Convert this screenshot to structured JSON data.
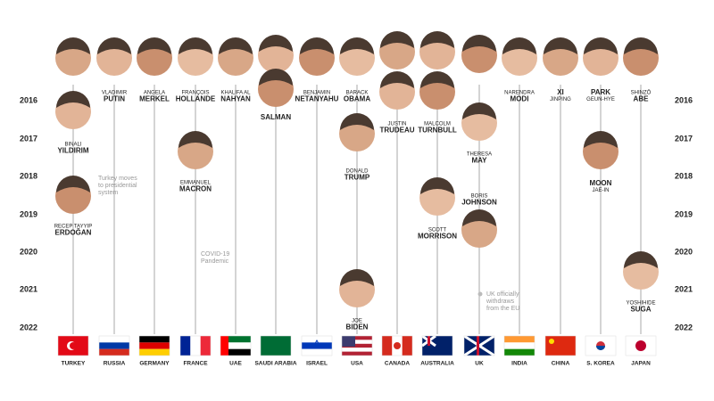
{
  "years": [
    "2016",
    "2017",
    "2018",
    "2019",
    "2020",
    "2021",
    "2022"
  ],
  "columns": [
    {
      "country": "TURKEY",
      "leaders": [
        [
          "BINALI",
          "YILDIRIM"
        ],
        [
          "RECEP TAYYIP",
          "ERDOĞAN"
        ]
      ]
    },
    {
      "country": "RUSSIA",
      "leaders": [
        [
          "VLADIMIR",
          "PUTIN"
        ]
      ]
    },
    {
      "country": "GERMANY",
      "leaders": [
        [
          "ANGELA",
          "MERKEL"
        ]
      ]
    },
    {
      "country": "FRANCE",
      "leaders": [
        [
          "FRANÇOIS",
          "HOLLANDE"
        ],
        [
          "EMMANUEL",
          "MACRON"
        ]
      ]
    },
    {
      "country": "UAE",
      "leaders": [
        [
          "KHALIFA AL",
          "NAHYAN"
        ]
      ]
    },
    {
      "country": "SAUDI ARABIA",
      "leaders": [
        [
          "SALMAN"
        ]
      ]
    },
    {
      "country": "ISRAEL",
      "leaders": [
        [
          "BENJAMIN",
          "NETANYAHU"
        ]
      ]
    },
    {
      "country": "USA",
      "leaders": [
        [
          "BARACK",
          "OBAMA"
        ],
        [
          "DONALD",
          "TRUMP"
        ],
        [
          "JOE",
          "BIDEN"
        ]
      ]
    },
    {
      "country": "CANADA",
      "leaders": [
        [
          "JUSTIN",
          "TRUDEAU"
        ]
      ]
    },
    {
      "country": "AUSTRALIA",
      "leaders": [
        [
          "MALCOLM",
          "TURNBULL"
        ],
        [
          "SCOTT",
          "MORRISON"
        ]
      ]
    },
    {
      "country": "UK",
      "leaders": [
        [
          "THERESA",
          "MAY"
        ],
        [
          "BORIS",
          "JOHNSON"
        ]
      ]
    },
    {
      "country": "INDIA",
      "leaders": [
        [
          "NARENDRA",
          "MODI"
        ]
      ]
    },
    {
      "country": "CHINA",
      "leaders": [
        [
          "XI",
          "JINPING"
        ]
      ]
    },
    {
      "country": "S. KOREA",
      "leaders": [
        [
          "PARK",
          "GEUN-HYE"
        ],
        [
          "MOON",
          "JAE-IN"
        ]
      ]
    },
    {
      "country": "JAPAN",
      "leaders": [
        [
          "SHINZŌ",
          "ABE"
        ],
        [
          "YOSHIHIDE",
          "SUGA"
        ]
      ]
    }
  ],
  "annotations": [
    [
      "Turkey moves",
      "to presidential",
      "system"
    ],
    [
      "COVID-19",
      "Pandemic"
    ],
    [
      "UK officially",
      "withdraws",
      "from the EU"
    ]
  ]
}
